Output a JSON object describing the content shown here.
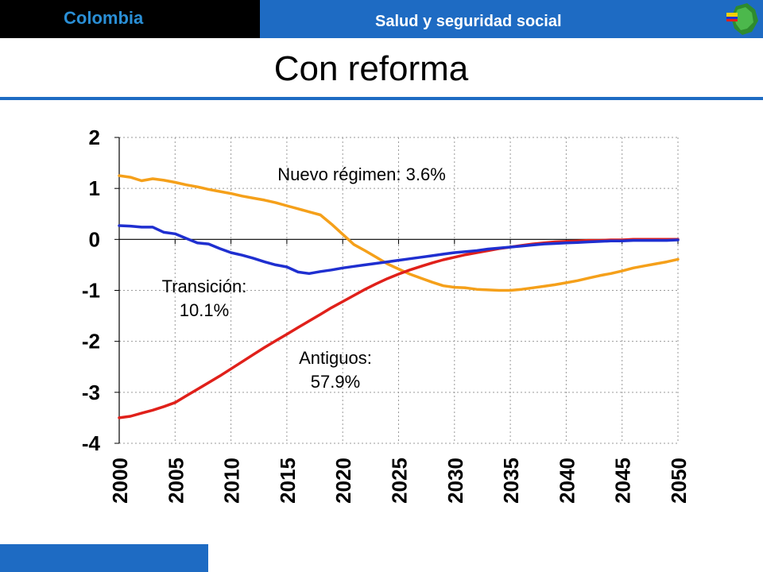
{
  "header": {
    "country": "Colombia",
    "section": "Salud y seguridad social"
  },
  "page_title": "Con reforma",
  "colors": {
    "header_blue": "#1e6bc3",
    "brand_text": "#2a8fd6",
    "series_nuevo": "#f5a01a",
    "series_transicion": "#1f2fd0",
    "series_antiguos": "#e0201a"
  },
  "logo": {
    "icon": "colombia-map-flag-icon"
  },
  "chart_data": {
    "type": "line",
    "x": [
      2000,
      2001,
      2002,
      2003,
      2004,
      2005,
      2006,
      2007,
      2008,
      2009,
      2010,
      2011,
      2012,
      2013,
      2014,
      2015,
      2016,
      2017,
      2018,
      2019,
      2020,
      2021,
      2022,
      2023,
      2024,
      2025,
      2026,
      2027,
      2028,
      2029,
      2030,
      2031,
      2032,
      2033,
      2034,
      2035,
      2036,
      2037,
      2038,
      2039,
      2040,
      2041,
      2042,
      2043,
      2044,
      2045,
      2046,
      2047,
      2048,
      2049,
      2050
    ],
    "xticks": [
      "2000",
      "2005",
      "2010",
      "2015",
      "2020",
      "2025",
      "2030",
      "2035",
      "2040",
      "2045",
      "2050"
    ],
    "yticks": [
      "2",
      "1",
      "0",
      "-1",
      "-2",
      "-3",
      "-4"
    ],
    "ylim": [
      -4,
      2
    ],
    "xlim": [
      2000,
      2050
    ],
    "grid": true,
    "series": [
      {
        "key": "nuevo",
        "values": [
          1.25,
          1.22,
          1.15,
          1.19,
          1.16,
          1.12,
          1.07,
          1.03,
          0.98,
          0.94,
          0.9,
          0.85,
          0.81,
          0.77,
          0.72,
          0.66,
          0.6,
          0.54,
          0.48,
          0.3,
          0.1,
          -0.1,
          -0.22,
          -0.35,
          -0.48,
          -0.58,
          -0.68,
          -0.76,
          -0.84,
          -0.91,
          -0.94,
          -0.95,
          -0.98,
          -0.99,
          -1.0,
          -1.0,
          -0.98,
          -0.95,
          -0.92,
          -0.89,
          -0.85,
          -0.81,
          -0.76,
          -0.71,
          -0.67,
          -0.62,
          -0.56,
          -0.52,
          -0.48,
          -0.44,
          -0.39
        ]
      },
      {
        "key": "transicion",
        "values": [
          0.27,
          0.26,
          0.24,
          0.24,
          0.14,
          0.11,
          0.02,
          -0.07,
          -0.09,
          -0.18,
          -0.26,
          -0.31,
          -0.37,
          -0.44,
          -0.5,
          -0.54,
          -0.64,
          -0.67,
          -0.63,
          -0.6,
          -0.56,
          -0.53,
          -0.5,
          -0.47,
          -0.44,
          -0.41,
          -0.38,
          -0.35,
          -0.32,
          -0.29,
          -0.26,
          -0.24,
          -0.22,
          -0.19,
          -0.17,
          -0.15,
          -0.13,
          -0.11,
          -0.09,
          -0.08,
          -0.07,
          -0.06,
          -0.05,
          -0.04,
          -0.03,
          -0.03,
          -0.02,
          -0.02,
          -0.02,
          -0.02,
          -0.01
        ]
      },
      {
        "key": "antiguos",
        "values": [
          -3.5,
          -3.47,
          -3.41,
          -3.35,
          -3.28,
          -3.2,
          -3.07,
          -2.94,
          -2.81,
          -2.68,
          -2.54,
          -2.4,
          -2.26,
          -2.12,
          -1.99,
          -1.86,
          -1.73,
          -1.6,
          -1.47,
          -1.34,
          -1.22,
          -1.1,
          -0.98,
          -0.87,
          -0.77,
          -0.68,
          -0.6,
          -0.53,
          -0.46,
          -0.4,
          -0.35,
          -0.3,
          -0.26,
          -0.22,
          -0.18,
          -0.15,
          -0.12,
          -0.09,
          -0.07,
          -0.05,
          -0.04,
          -0.03,
          -0.02,
          -0.02,
          -0.01,
          -0.01,
          0.0,
          0.0,
          0.0,
          0.0,
          0.0
        ]
      }
    ],
    "annotations": {
      "nuevo": "Nuevo régimen: 3.6%",
      "transicion_line1": "Transición:",
      "transicion_line2": "10.1%",
      "antiguos_line1": "Antiguos:",
      "antiguos_line2": "57.9%"
    }
  }
}
